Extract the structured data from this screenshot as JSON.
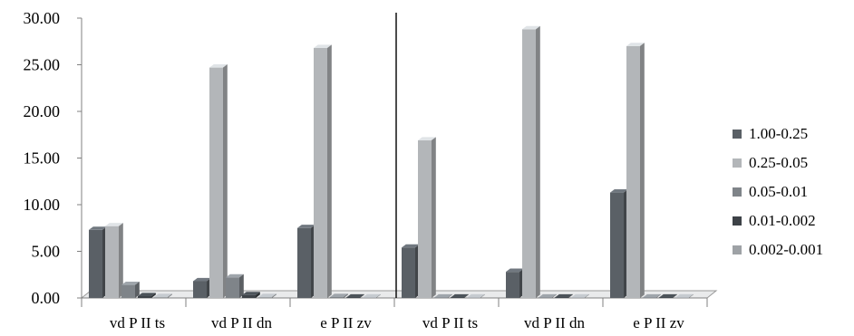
{
  "chart_data": {
    "type": "bar",
    "categories": [
      "vd P II ts",
      "vd P II dn",
      "e P II zv",
      "vd P II ts",
      "vd P II dn",
      "e P II zv"
    ],
    "y_ticks": [
      "0.00",
      "5.00",
      "10.00",
      "15.00",
      "20.00",
      "25.00",
      "30.00"
    ],
    "ylim": [
      0,
      30
    ],
    "grid": false,
    "legend_position": "right",
    "series": [
      {
        "name": "1.00-0.25",
        "color": "#5a6066",
        "values": [
          7.3,
          1.8,
          7.5,
          5.4,
          2.8,
          11.3
        ]
      },
      {
        "name": "0.25-0.05",
        "color": "#b3b6b9",
        "values": [
          7.7,
          24.7,
          26.8,
          16.9,
          28.8,
          27.0
        ]
      },
      {
        "name": "0.05-0.01",
        "color": "#7f8489",
        "values": [
          1.4,
          2.2,
          0.1,
          0.05,
          0.05,
          0.05
        ]
      },
      {
        "name": "0.01-0.002",
        "color": "#3d4247",
        "values": [
          0.2,
          0.3,
          0.05,
          0.05,
          0.05,
          0.05
        ]
      },
      {
        "name": "0.002-0.001",
        "color": "#9ea2a6",
        "values": [
          0.1,
          0.1,
          0.05,
          0.05,
          0.05,
          0.05
        ]
      }
    ]
  }
}
